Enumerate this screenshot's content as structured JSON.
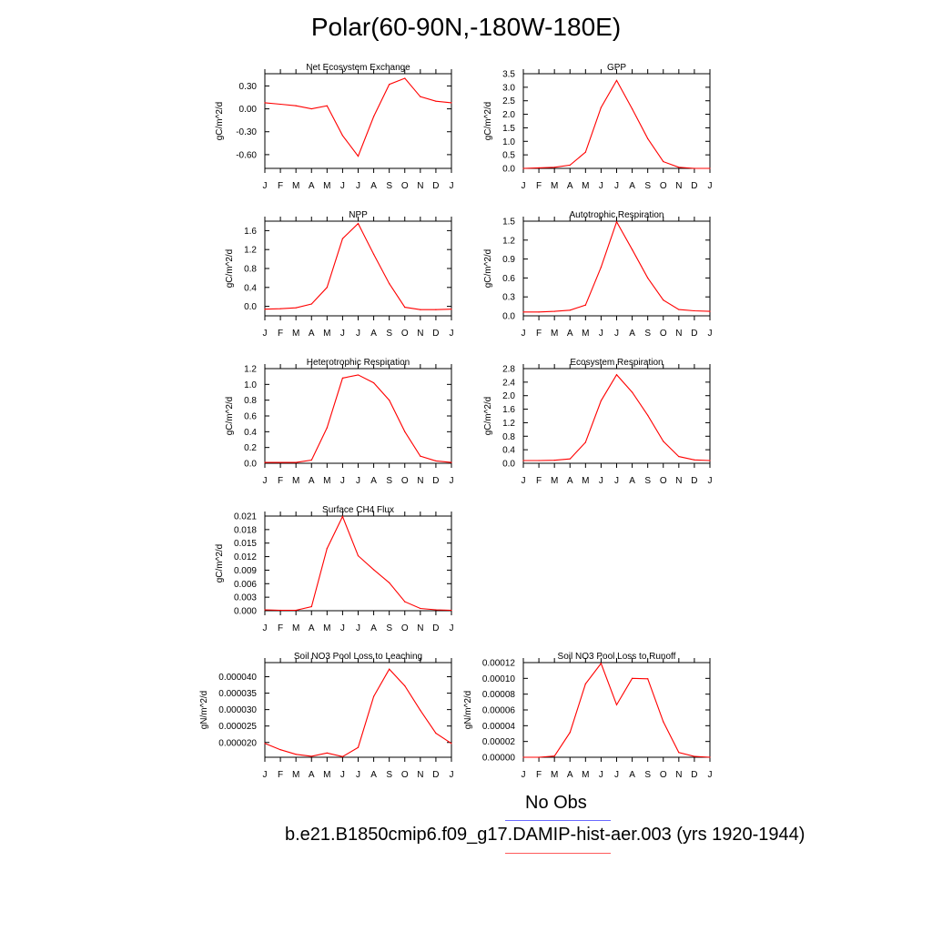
{
  "title": "Polar(60-90N,-180W-180E)",
  "legend": {
    "obs_label": "No Obs",
    "obs_color": "#6a6aff",
    "model_label": "b.e21.B1850cmip6.f09_g17.DAMIP-hist-aer.003 (yrs 1920-1944)",
    "model_color": "#ff0000"
  },
  "month_ticks": [
    "J",
    "F",
    "M",
    "A",
    "M",
    "J",
    "J",
    "A",
    "S",
    "O",
    "N",
    "D",
    "J"
  ],
  "chart_data": [
    {
      "type": "line",
      "title": "Net Ecosystem Exchange",
      "ylabel": "gC/m^2/d",
      "ylim": [
        -0.78,
        0.46
      ],
      "yticks": [
        0.3,
        0.0,
        -0.3,
        -0.6
      ],
      "ytick_labels": [
        "0.30",
        "0.00",
        "-0.30",
        "-0.60"
      ],
      "x": [
        "J",
        "F",
        "M",
        "A",
        "M",
        "J",
        "J",
        "A",
        "S",
        "O",
        "N",
        "D",
        "J"
      ],
      "values": [
        0.08,
        0.06,
        0.04,
        0.0,
        0.04,
        -0.35,
        -0.62,
        -0.1,
        0.32,
        0.4,
        0.16,
        0.1,
        0.08
      ]
    },
    {
      "type": "line",
      "title": "GPP",
      "ylabel": "gC/m^2/d",
      "ylim": [
        0.0,
        3.5
      ],
      "yticks": [
        0.0,
        0.5,
        1.0,
        1.5,
        2.0,
        2.5,
        3.0,
        3.5
      ],
      "ytick_labels": [
        "0.0",
        "0.5",
        "1.0",
        "1.5",
        "2.0",
        "2.5",
        "3.0",
        "3.5"
      ],
      "x": [
        "J",
        "F",
        "M",
        "A",
        "M",
        "J",
        "J",
        "A",
        "S",
        "O",
        "N",
        "D",
        "J"
      ],
      "values": [
        0.0,
        0.02,
        0.04,
        0.12,
        0.6,
        2.25,
        3.25,
        2.2,
        1.1,
        0.25,
        0.04,
        0.0,
        0.0
      ]
    },
    {
      "type": "line",
      "title": "NPP",
      "ylabel": "gC/m^2/d",
      "ylim": [
        -0.2,
        1.8
      ],
      "yticks": [
        0.0,
        0.4,
        0.8,
        1.2,
        1.6
      ],
      "ytick_labels": [
        "0.0",
        "0.4",
        "0.8",
        "1.2",
        "1.6"
      ],
      "x": [
        "J",
        "F",
        "M",
        "A",
        "M",
        "J",
        "J",
        "A",
        "S",
        "O",
        "N",
        "D",
        "J"
      ],
      "values": [
        -0.06,
        -0.05,
        -0.03,
        0.05,
        0.4,
        1.43,
        1.75,
        1.1,
        0.48,
        -0.02,
        -0.07,
        -0.07,
        -0.06
      ]
    },
    {
      "type": "line",
      "title": "Autotrophic Respiration",
      "ylabel": "gC/m^2/d",
      "ylim": [
        0.0,
        1.5
      ],
      "yticks": [
        0.0,
        0.3,
        0.6,
        0.9,
        1.2,
        1.5
      ],
      "ytick_labels": [
        "0.0",
        "0.3",
        "0.6",
        "0.9",
        "1.2",
        "1.5"
      ],
      "x": [
        "J",
        "F",
        "M",
        "A",
        "M",
        "J",
        "J",
        "A",
        "S",
        "O",
        "N",
        "D",
        "J"
      ],
      "values": [
        0.06,
        0.06,
        0.07,
        0.09,
        0.17,
        0.77,
        1.49,
        1.05,
        0.6,
        0.25,
        0.1,
        0.08,
        0.07
      ]
    },
    {
      "type": "line",
      "title": "Heterotrophic Respiration",
      "ylabel": "gC/m^2/d",
      "ylim": [
        0.0,
        1.2
      ],
      "yticks": [
        0.0,
        0.2,
        0.4,
        0.6,
        0.8,
        1.0,
        1.2
      ],
      "ytick_labels": [
        "0.0",
        "0.2",
        "0.4",
        "0.6",
        "0.8",
        "1.0",
        "1.2"
      ],
      "x": [
        "J",
        "F",
        "M",
        "A",
        "M",
        "J",
        "J",
        "A",
        "S",
        "O",
        "N",
        "D",
        "J"
      ],
      "values": [
        0.01,
        0.01,
        0.01,
        0.04,
        0.45,
        1.08,
        1.12,
        1.02,
        0.8,
        0.4,
        0.09,
        0.03,
        0.01
      ]
    },
    {
      "type": "line",
      "title": "Ecosystem Respiration",
      "ylabel": "gC/m^2/d",
      "ylim": [
        0.0,
        2.8
      ],
      "yticks": [
        0.0,
        0.4,
        0.8,
        1.2,
        1.6,
        2.0,
        2.4,
        2.8
      ],
      "ytick_labels": [
        "0.0",
        "0.4",
        "0.8",
        "1.2",
        "1.6",
        "2.0",
        "2.4",
        "2.8"
      ],
      "x": [
        "J",
        "F",
        "M",
        "A",
        "M",
        "J",
        "J",
        "A",
        "S",
        "O",
        "N",
        "D",
        "J"
      ],
      "values": [
        0.08,
        0.08,
        0.09,
        0.13,
        0.62,
        1.85,
        2.62,
        2.1,
        1.42,
        0.65,
        0.2,
        0.1,
        0.08
      ]
    },
    {
      "type": "line",
      "title": "Surface CH4 Flux",
      "ylabel": "gC/m^2/d",
      "ylim": [
        0.0,
        0.021
      ],
      "yticks": [
        0.0,
        0.003,
        0.006,
        0.009,
        0.012,
        0.015,
        0.018,
        0.021
      ],
      "ytick_labels": [
        "0.000",
        "0.003",
        "0.006",
        "0.009",
        "0.012",
        "0.015",
        "0.018",
        "0.021"
      ],
      "x": [
        "J",
        "F",
        "M",
        "A",
        "M",
        "J",
        "J",
        "A",
        "S",
        "O",
        "N",
        "D",
        "J"
      ],
      "values": [
        0.0002,
        0.0001,
        0.0001,
        0.0009,
        0.0138,
        0.0209,
        0.0122,
        0.0091,
        0.0062,
        0.002,
        0.0005,
        0.0002,
        0.0001
      ]
    },
    {
      "type": "line",
      "title": "Soil NO3 Pool Loss to Leaching",
      "ylabel": "gN/m^2/d",
      "ylim": [
        1.55e-05,
        4.43e-05
      ],
      "yticks": [
        2e-05,
        2.5e-05,
        3e-05,
        3.5e-05,
        4e-05
      ],
      "ytick_labels": [
        "0.000020",
        "0.000025",
        "0.000030",
        "0.000035",
        "0.000040"
      ],
      "x": [
        "J",
        "F",
        "M",
        "A",
        "M",
        "J",
        "J",
        "A",
        "S",
        "O",
        "N",
        "D",
        "J"
      ],
      "values": [
        1.97e-05,
        1.78e-05,
        1.64e-05,
        1.58e-05,
        1.68e-05,
        1.57e-05,
        1.85e-05,
        3.4e-05,
        4.23e-05,
        3.72e-05,
        2.98e-05,
        2.28e-05,
        1.97e-05
      ]
    },
    {
      "type": "line",
      "title": "Soil NO3 Pool Loss to Runoff",
      "ylabel": "gN/m^2/d",
      "ylim": [
        0.0,
        0.00012
      ],
      "yticks": [
        0.0,
        2e-05,
        4e-05,
        6e-05,
        8e-05,
        0.0001,
        0.00012
      ],
      "ytick_labels": [
        "0.00000",
        "0.00002",
        "0.00004",
        "0.00006",
        "0.00008",
        "0.00010",
        "0.00012"
      ],
      "x": [
        "J",
        "F",
        "M",
        "A",
        "M",
        "J",
        "J",
        "A",
        "S",
        "O",
        "N",
        "D",
        "J"
      ],
      "values": [
        0.0,
        0.0,
        1.5e-06,
        3.15e-05,
        9.3e-05,
        0.000119,
        6.65e-05,
        0.0001,
        9.95e-05,
        4.5e-05,
        6e-06,
        1e-06,
        0.0
      ]
    }
  ]
}
